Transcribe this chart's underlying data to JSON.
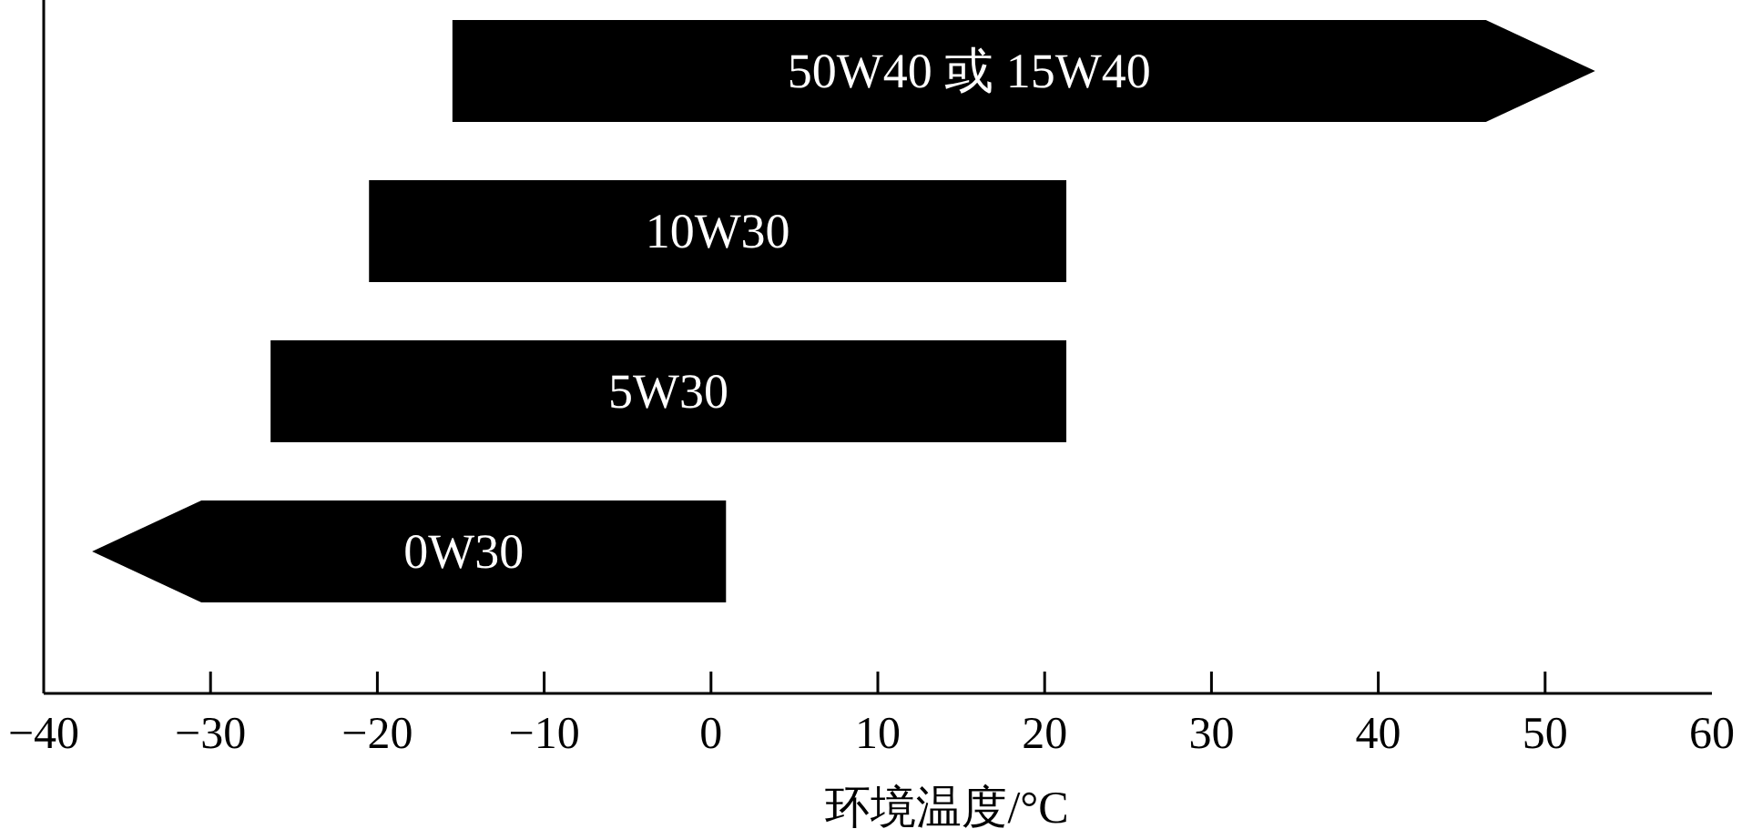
{
  "chart_data": {
    "type": "bar",
    "orientation": "horizontal",
    "xlabel": "环境温度/°C",
    "categories": [
      "50W40 或 15W40",
      "10W30",
      "5W30",
      "0W30"
    ],
    "base": [
      -15.5,
      -20.5,
      -26.4,
      -37.1
    ],
    "values": [
      68.5,
      41.8,
      47.7,
      38.0
    ],
    "color": "#000000",
    "xlim": [
      -40,
      60
    ],
    "xticks": [
      {
        "value": -40,
        "label": "−40"
      },
      {
        "value": -30,
        "label": "−30"
      },
      {
        "value": -20,
        "label": "−20"
      },
      {
        "value": -10,
        "label": "−10"
      },
      0,
      10,
      20,
      30,
      40,
      50,
      60
    ],
    "tick_labels": "x",
    "grid": false
  }
}
